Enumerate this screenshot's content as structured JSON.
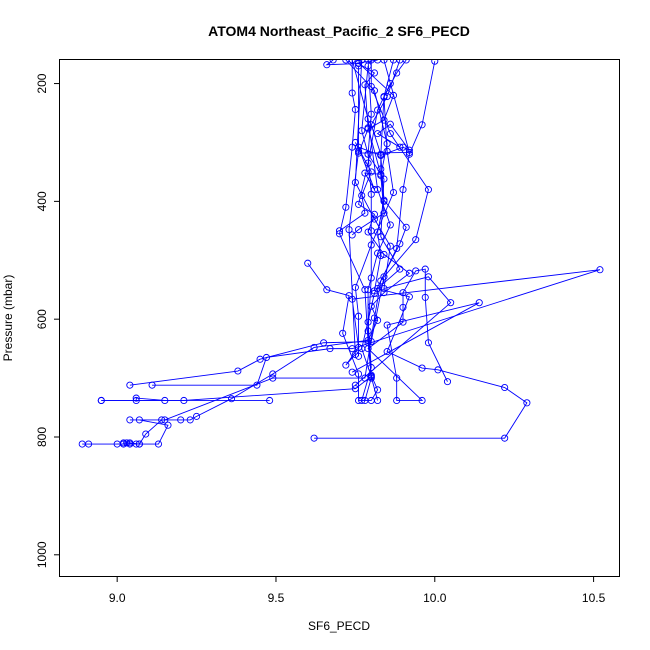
{
  "chart_data": {
    "type": "line",
    "title": "ATOM4 Northeast_Pacific_2 SF6_PECD",
    "xlabel": "SF6_PECD",
    "ylabel": "Pressure (mbar)",
    "xlim": [
      8.82,
      10.58
    ],
    "ylim": [
      1036,
      160
    ],
    "y_reversed": true,
    "x_ticks": [
      9.0,
      9.5,
      10.0,
      10.5
    ],
    "x_tick_labels": [
      "9.0",
      "9.5",
      "10.0",
      "10.5"
    ],
    "y_ticks": [
      200,
      400,
      600,
      800,
      1000
    ],
    "y_tick_labels": [
      "200",
      "400",
      "600",
      "800",
      "1000"
    ],
    "grid": false,
    "series": [
      {
        "values": [
          [
            9.62,
            802
          ],
          [
            10.22,
            802
          ],
          [
            10.29,
            742
          ],
          [
            10.22,
            716
          ],
          [
            10.01,
            686
          ],
          [
            9.96,
            683
          ],
          [
            9.85,
            655
          ],
          [
            9.92,
            562
          ],
          [
            9.82,
            548
          ],
          [
            9.89,
            515
          ],
          [
            9.83,
            460
          ],
          [
            9.84,
            362
          ],
          [
            9.79,
            320
          ],
          [
            9.77,
            280
          ],
          [
            9.79,
            170
          ]
        ]
      },
      {
        "values": [
          [
            8.89,
            812
          ],
          [
            8.91,
            812
          ],
          [
            9.07,
            812
          ],
          [
            9.09,
            795
          ],
          [
            9.14,
            771
          ],
          [
            9.2,
            771
          ],
          [
            9.23,
            771
          ],
          [
            9.25,
            765
          ],
          [
            9.36,
            735
          ],
          [
            9.49,
            693
          ],
          [
            9.62,
            648
          ],
          [
            9.79,
            636
          ],
          [
            9.82,
            602
          ],
          [
            9.8,
            578
          ],
          [
            9.84,
            555
          ],
          [
            9.92,
            522
          ],
          [
            9.84,
            490
          ],
          [
            9.79,
            452
          ],
          [
            9.81,
            422
          ],
          [
            9.76,
            405
          ],
          [
            9.79,
            335
          ],
          [
            9.82,
            245
          ],
          [
            9.86,
            200
          ]
        ]
      },
      {
        "values": [
          [
            9.0,
            812
          ],
          [
            9.04,
            812
          ],
          [
            9.13,
            812
          ],
          [
            9.16,
            780
          ],
          [
            9.07,
            771
          ],
          [
            9.04,
            771
          ],
          [
            9.15,
            771
          ],
          [
            9.49,
            700
          ],
          [
            9.78,
            700
          ],
          [
            9.81,
            598
          ],
          [
            9.83,
            535
          ],
          [
            9.88,
            480
          ],
          [
            9.9,
            380
          ],
          [
            9.92,
            320
          ],
          [
            9.96,
            270
          ],
          [
            10.0,
            162
          ]
        ]
      },
      {
        "values": [
          [
            9.02,
            812
          ],
          [
            9.06,
            812
          ],
          [
            9.07,
            812
          ],
          [
            9.04,
            810
          ],
          [
            9.03,
            810
          ],
          [
            9.02,
            810
          ]
        ]
      },
      {
        "values": [
          [
            8.95,
            738
          ],
          [
            9.15,
            738
          ],
          [
            9.06,
            734
          ],
          [
            9.06,
            738
          ],
          [
            9.21,
            738
          ],
          [
            9.75,
            718
          ],
          [
            9.8,
            697
          ],
          [
            9.77,
            650
          ],
          [
            9.81,
            556
          ],
          [
            9.89,
            472
          ],
          [
            9.91,
            444
          ],
          [
            9.84,
            398
          ],
          [
            9.83,
            322
          ],
          [
            9.84,
            222
          ],
          [
            9.87,
            160
          ]
        ]
      },
      {
        "values": [
          [
            8.95,
            738
          ],
          [
            9.48,
            738
          ]
        ]
      },
      {
        "values": [
          [
            9.04,
            712
          ],
          [
            9.38,
            688
          ],
          [
            9.45,
            668
          ],
          [
            9.65,
            640
          ],
          [
            9.8,
            638
          ],
          [
            9.84,
            528
          ],
          [
            9.94,
            465
          ],
          [
            9.98,
            380
          ],
          [
            9.86,
            285
          ],
          [
            9.8,
            205
          ],
          [
            9.8,
            160
          ]
        ]
      },
      {
        "values": [
          [
            9.11,
            712
          ],
          [
            9.44,
            712
          ],
          [
            9.47,
            665
          ],
          [
            9.67,
            650
          ],
          [
            9.74,
            650
          ],
          [
            10.52,
            516
          ],
          [
            9.74,
            566
          ],
          [
            9.76,
            648
          ],
          [
            9.72,
            678
          ],
          [
            9.75,
            660
          ],
          [
            9.73,
            448
          ],
          [
            9.76,
            315
          ],
          [
            9.76,
            170
          ]
        ]
      },
      {
        "values": [
          [
            9.75,
            712
          ],
          [
            10.05,
            572
          ],
          [
            9.98,
            528
          ],
          [
            9.84,
            548
          ],
          [
            9.86,
            476
          ],
          [
            9.81,
            430
          ],
          [
            9.75,
            368
          ],
          [
            9.77,
            160
          ]
        ]
      },
      {
        "values": [
          [
            9.74,
            690
          ],
          [
            10.14,
            572
          ],
          [
            9.85,
            610
          ],
          [
            9.88,
            700
          ],
          [
            9.88,
            738
          ],
          [
            9.96,
            738
          ],
          [
            9.79,
            650
          ],
          [
            9.9,
            605
          ],
          [
            9.9,
            580
          ],
          [
            9.9,
            555
          ],
          [
            9.94,
            518
          ],
          [
            9.97,
            515
          ],
          [
            9.97,
            563
          ],
          [
            9.98,
            640
          ],
          [
            10.04,
            706
          ]
        ]
      },
      {
        "values": [
          [
            9.77,
            738
          ],
          [
            9.8,
            682
          ],
          [
            9.79,
            605
          ],
          [
            9.79,
            550
          ],
          [
            9.82,
            488
          ],
          [
            9.86,
            440
          ],
          [
            9.82,
            380
          ],
          [
            9.79,
            260
          ],
          [
            9.74,
            160
          ]
        ]
      },
      {
        "values": [
          [
            9.78,
            738
          ],
          [
            9.8,
            700
          ],
          [
            9.79,
            620
          ],
          [
            9.8,
            530
          ],
          [
            9.8,
            450
          ],
          [
            9.8,
            388
          ],
          [
            9.79,
            320
          ],
          [
            9.8,
            252
          ],
          [
            9.79,
            160
          ]
        ]
      },
      {
        "values": [
          [
            9.82,
            738
          ],
          [
            9.8,
            698
          ],
          [
            9.79,
            640
          ],
          [
            9.78,
            550
          ],
          [
            9.7,
            455
          ],
          [
            9.72,
            410
          ],
          [
            9.74,
            308
          ],
          [
            9.75,
            244
          ],
          [
            9.74,
            216
          ],
          [
            9.74,
            160
          ]
        ]
      },
      {
        "values": [
          [
            9.6,
            505
          ],
          [
            9.66,
            550
          ],
          [
            9.73,
            560
          ],
          [
            9.71,
            624
          ],
          [
            9.76,
            693
          ],
          [
            9.76,
            738
          ],
          [
            9.8,
            738
          ],
          [
            9.82,
            720
          ],
          [
            9.8,
            695
          ]
        ]
      },
      {
        "values": [
          [
            9.75,
            300
          ],
          [
            9.8,
            350
          ],
          [
            9.77,
            390
          ],
          [
            9.78,
            420
          ],
          [
            9.7,
            450
          ]
        ]
      },
      {
        "values": [
          [
            9.89,
            308
          ],
          [
            9.82,
            285
          ],
          [
            9.86,
            269
          ],
          [
            9.92,
            313
          ],
          [
            9.9,
            308
          ],
          [
            9.83,
            322
          ],
          [
            9.76,
            308
          ],
          [
            9.81,
            380
          ],
          [
            9.78,
            352
          ],
          [
            9.83,
            354
          ],
          [
            9.79,
            275
          ],
          [
            9.78,
            202
          ],
          [
            9.81,
            182
          ],
          [
            9.76,
            166
          ],
          [
            9.66,
            168
          ],
          [
            9.68,
            160
          ]
        ]
      },
      {
        "values": [
          [
            9.82,
            160
          ],
          [
            9.76,
            165
          ],
          [
            9.87,
            220
          ],
          [
            9.84,
            262
          ],
          [
            9.79,
            277
          ],
          [
            9.76,
            318
          ],
          [
            9.92,
            317
          ],
          [
            9.84,
            160
          ]
        ]
      },
      {
        "values": [
          [
            9.72,
            160
          ],
          [
            9.81,
            212
          ],
          [
            9.85,
            302
          ],
          [
            9.83,
            356
          ],
          [
            9.84,
            420
          ],
          [
            9.76,
            448
          ],
          [
            9.74,
            457
          ]
        ]
      },
      {
        "values": [
          [
            9.89,
            160
          ],
          [
            9.85,
            222
          ],
          [
            9.8,
            270
          ],
          [
            9.83,
            320
          ],
          [
            9.83,
            345
          ],
          [
            9.84,
            400
          ],
          [
            9.82,
            452
          ],
          [
            9.83,
            492
          ],
          [
            9.81,
            552
          ]
        ]
      },
      {
        "values": [
          [
            9.91,
            160
          ],
          [
            9.88,
            182
          ],
          [
            9.84,
            223
          ],
          [
            9.85,
            315
          ],
          [
            9.87,
            385
          ],
          [
            9.8,
            474
          ],
          [
            9.75,
            546
          ],
          [
            9.76,
            595
          ],
          [
            9.76,
            663
          ]
        ]
      }
    ]
  },
  "colors": {
    "series": "#0000ff",
    "axis": "#000000",
    "background": "#ffffff"
  }
}
